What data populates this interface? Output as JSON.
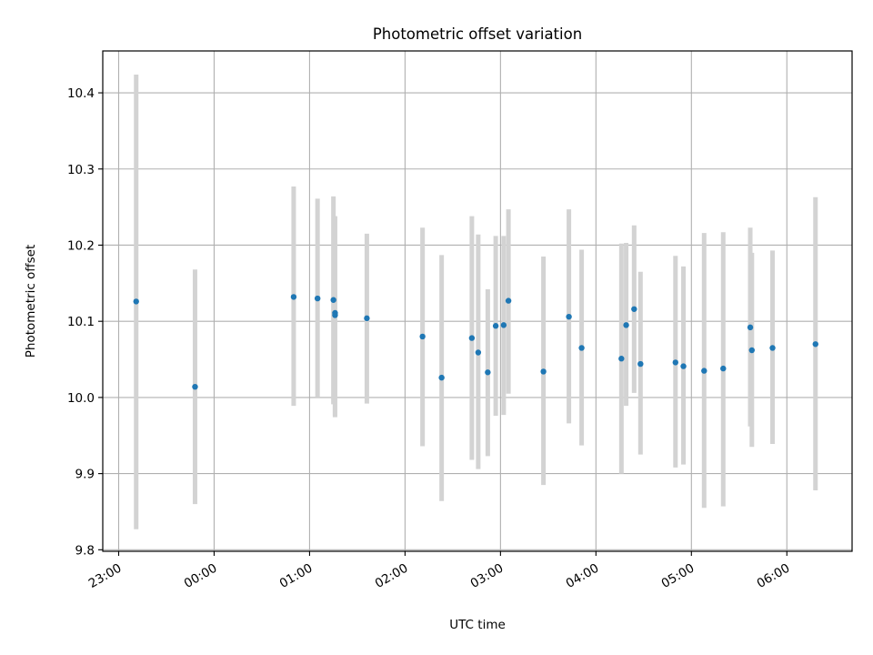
{
  "chart_data": {
    "type": "scatter",
    "title": "Photometric offset variation",
    "xlabel": "UTC time",
    "ylabel": "Photometric offset",
    "grid": true,
    "legend": "none",
    "error_bars": true,
    "xlim": [
      "22:50",
      "06:41"
    ],
    "ylim": [
      9.798,
      10.455
    ],
    "x_ticks": [
      "23:00",
      "00:00",
      "01:00",
      "02:00",
      "03:00",
      "04:00",
      "05:00",
      "06:00"
    ],
    "y_ticks": [
      "9.8",
      "9.9",
      "10.0",
      "10.1",
      "10.2",
      "10.3",
      "10.4"
    ],
    "colors": {
      "point": "#1f77b4",
      "error_bar": "#d3d3d3",
      "grid": "#b0b0b0"
    },
    "points": [
      {
        "x": "23:11",
        "y": 10.126,
        "err_low": 9.827,
        "err_high": 10.424
      },
      {
        "x": "23:48",
        "y": 10.014,
        "err_low": 9.86,
        "err_high": 10.168
      },
      {
        "x": "00:50",
        "y": 10.132,
        "err_low": 9.989,
        "err_high": 10.277
      },
      {
        "x": "01:05",
        "y": 10.13,
        "err_low": 10.001,
        "err_high": 10.261
      },
      {
        "x": "01:15",
        "y": 10.128,
        "err_low": 9.991,
        "err_high": 10.264
      },
      {
        "x": "01:16",
        "y": 10.111,
        "err_low": 9.974,
        "err_high": 10.238
      },
      {
        "x": "01:16",
        "y": 10.108,
        "err_low": 9.976,
        "err_high": 10.237
      },
      {
        "x": "01:36",
        "y": 10.104,
        "err_low": 9.992,
        "err_high": 10.215
      },
      {
        "x": "02:11",
        "y": 10.08,
        "err_low": 9.936,
        "err_high": 10.223
      },
      {
        "x": "02:23",
        "y": 10.026,
        "err_low": 9.864,
        "err_high": 10.187
      },
      {
        "x": "02:42",
        "y": 10.078,
        "err_low": 9.918,
        "err_high": 10.238
      },
      {
        "x": "02:46",
        "y": 10.059,
        "err_low": 9.906,
        "err_high": 10.214
      },
      {
        "x": "02:52",
        "y": 10.033,
        "err_low": 9.923,
        "err_high": 10.142
      },
      {
        "x": "02:57",
        "y": 10.094,
        "err_low": 9.976,
        "err_high": 10.212
      },
      {
        "x": "03:02",
        "y": 10.095,
        "err_low": 9.977,
        "err_high": 10.212
      },
      {
        "x": "03:05",
        "y": 10.127,
        "err_low": 10.005,
        "err_high": 10.247
      },
      {
        "x": "03:27",
        "y": 10.034,
        "err_low": 9.885,
        "err_high": 10.185
      },
      {
        "x": "03:43",
        "y": 10.106,
        "err_low": 9.966,
        "err_high": 10.247
      },
      {
        "x": "03:51",
        "y": 10.065,
        "err_low": 9.937,
        "err_high": 10.194
      },
      {
        "x": "04:16",
        "y": 10.051,
        "err_low": 9.9,
        "err_high": 10.202
      },
      {
        "x": "04:19",
        "y": 10.095,
        "err_low": 9.989,
        "err_high": 10.203
      },
      {
        "x": "04:24",
        "y": 10.116,
        "err_low": 10.006,
        "err_high": 10.226
      },
      {
        "x": "04:28",
        "y": 10.044,
        "err_low": 9.925,
        "err_high": 10.165
      },
      {
        "x": "04:50",
        "y": 10.046,
        "err_low": 9.908,
        "err_high": 10.186
      },
      {
        "x": "04:55",
        "y": 10.041,
        "err_low": 9.912,
        "err_high": 10.172
      },
      {
        "x": "05:08",
        "y": 10.035,
        "err_low": 9.855,
        "err_high": 10.216
      },
      {
        "x": "05:20",
        "y": 10.038,
        "err_low": 9.857,
        "err_high": 10.217
      },
      {
        "x": "05:37",
        "y": 10.092,
        "err_low": 9.962,
        "err_high": 10.223
      },
      {
        "x": "05:38",
        "y": 10.062,
        "err_low": 9.935,
        "err_high": 10.19
      },
      {
        "x": "05:51",
        "y": 10.065,
        "err_low": 9.939,
        "err_high": 10.193
      },
      {
        "x": "06:18",
        "y": 10.07,
        "err_low": 9.878,
        "err_high": 10.263
      }
    ]
  }
}
